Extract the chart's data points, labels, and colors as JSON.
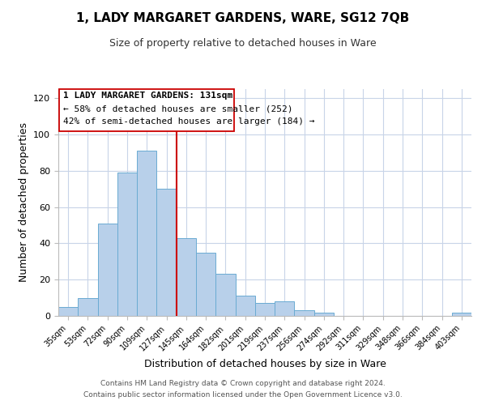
{
  "title": "1, LADY MARGARET GARDENS, WARE, SG12 7QB",
  "subtitle": "Size of property relative to detached houses in Ware",
  "xlabel": "Distribution of detached houses by size in Ware",
  "ylabel": "Number of detached properties",
  "bin_labels": [
    "35sqm",
    "53sqm",
    "72sqm",
    "90sqm",
    "109sqm",
    "127sqm",
    "145sqm",
    "164sqm",
    "182sqm",
    "201sqm",
    "219sqm",
    "237sqm",
    "256sqm",
    "274sqm",
    "292sqm",
    "311sqm",
    "329sqm",
    "348sqm",
    "366sqm",
    "384sqm",
    "403sqm"
  ],
  "bar_heights": [
    5,
    10,
    51,
    79,
    91,
    70,
    43,
    35,
    23,
    11,
    7,
    8,
    3,
    2,
    0,
    0,
    0,
    0,
    0,
    0,
    2
  ],
  "bar_color": "#b8d0ea",
  "bar_edge_color": "#6aabd2",
  "vline_x_idx": 5,
  "vline_color": "#cc0000",
  "ylim": [
    0,
    125
  ],
  "yticks": [
    0,
    20,
    40,
    60,
    80,
    100,
    120
  ],
  "annotation_title": "1 LADY MARGARET GARDENS: 131sqm",
  "annotation_line1": "← 58% of detached houses are smaller (252)",
  "annotation_line2": "42% of semi-detached houses are larger (184) →",
  "annotation_box_color": "#ffffff",
  "annotation_box_edge": "#cc0000",
  "footer_line1": "Contains HM Land Registry data © Crown copyright and database right 2024.",
  "footer_line2": "Contains public sector information licensed under the Open Government Licence v3.0.",
  "background_color": "#ffffff",
  "grid_color": "#c8d4e8"
}
